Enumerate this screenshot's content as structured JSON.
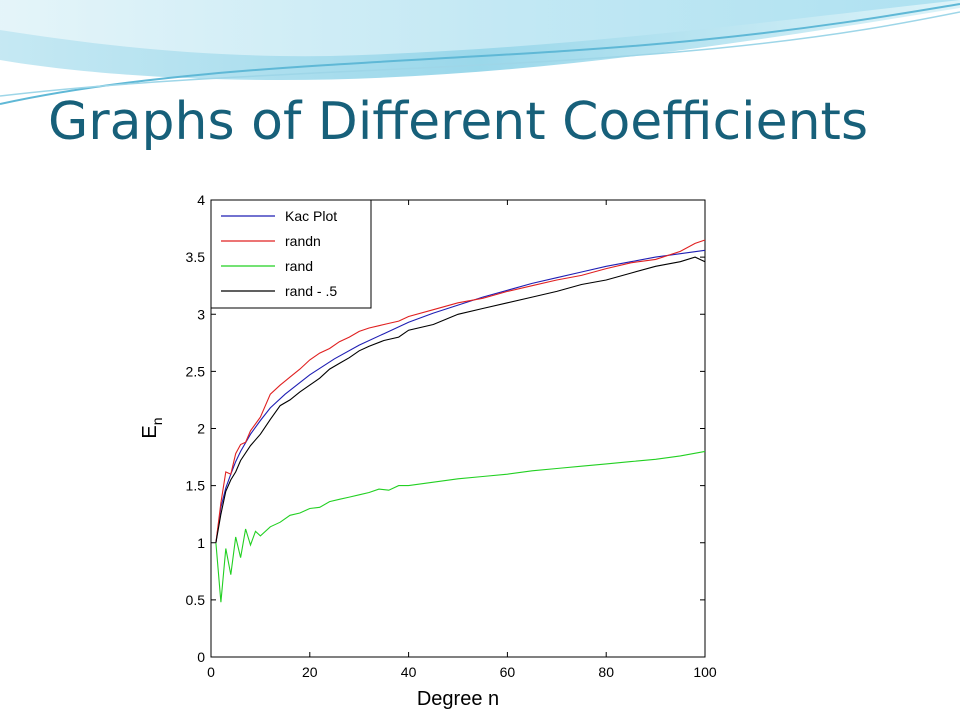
{
  "slide": {
    "title": "Graphs of Different Coefficients",
    "accent_color": "#17607a"
  },
  "chart_data": {
    "type": "line",
    "xlabel": "Degree n",
    "ylabel_main": "E",
    "ylabel_sub": "n",
    "xlim": [
      0,
      100
    ],
    "ylim": [
      0,
      4
    ],
    "xticks": [
      "0",
      "20",
      "40",
      "60",
      "80",
      "100"
    ],
    "yticks": [
      "0",
      "0.5",
      "1",
      "1.5",
      "2",
      "2.5",
      "3",
      "3.5",
      "4"
    ],
    "grid": false,
    "legend_position": "top-left",
    "series": [
      {
        "name": "Kac Plot",
        "color": "#1f1fb4",
        "points": [
          [
            1,
            1.0
          ],
          [
            2,
            1.31
          ],
          [
            3,
            1.48
          ],
          [
            4,
            1.6
          ],
          [
            5,
            1.71
          ],
          [
            6,
            1.8
          ],
          [
            8,
            1.95
          ],
          [
            10,
            2.07
          ],
          [
            12,
            2.18
          ],
          [
            15,
            2.3
          ],
          [
            20,
            2.47
          ],
          [
            25,
            2.61
          ],
          [
            30,
            2.73
          ],
          [
            35,
            2.83
          ],
          [
            40,
            2.93
          ],
          [
            45,
            3.01
          ],
          [
            50,
            3.08
          ],
          [
            55,
            3.15
          ],
          [
            60,
            3.21
          ],
          [
            65,
            3.27
          ],
          [
            70,
            3.32
          ],
          [
            75,
            3.37
          ],
          [
            80,
            3.42
          ],
          [
            85,
            3.46
          ],
          [
            90,
            3.5
          ],
          [
            95,
            3.53
          ],
          [
            100,
            3.56
          ]
        ]
      },
      {
        "name": "randn",
        "color": "#e02020",
        "points": [
          [
            1,
            1.0
          ],
          [
            2,
            1.35
          ],
          [
            3,
            1.62
          ],
          [
            4,
            1.6
          ],
          [
            5,
            1.78
          ],
          [
            6,
            1.86
          ],
          [
            7,
            1.88
          ],
          [
            8,
            1.98
          ],
          [
            10,
            2.1
          ],
          [
            12,
            2.3
          ],
          [
            14,
            2.38
          ],
          [
            16,
            2.45
          ],
          [
            18,
            2.52
          ],
          [
            20,
            2.6
          ],
          [
            22,
            2.66
          ],
          [
            24,
            2.7
          ],
          [
            26,
            2.76
          ],
          [
            28,
            2.8
          ],
          [
            30,
            2.85
          ],
          [
            32,
            2.88
          ],
          [
            34,
            2.9
          ],
          [
            36,
            2.92
          ],
          [
            38,
            2.94
          ],
          [
            40,
            2.98
          ],
          [
            45,
            3.04
          ],
          [
            50,
            3.1
          ],
          [
            55,
            3.14
          ],
          [
            60,
            3.2
          ],
          [
            65,
            3.25
          ],
          [
            70,
            3.3
          ],
          [
            75,
            3.34
          ],
          [
            80,
            3.4
          ],
          [
            85,
            3.45
          ],
          [
            90,
            3.48
          ],
          [
            95,
            3.55
          ],
          [
            98,
            3.62
          ],
          [
            100,
            3.65
          ]
        ]
      },
      {
        "name": "rand",
        "color": "#22d022",
        "points": [
          [
            1,
            1.0
          ],
          [
            2,
            0.48
          ],
          [
            3,
            0.95
          ],
          [
            4,
            0.72
          ],
          [
            5,
            1.05
          ],
          [
            6,
            0.87
          ],
          [
            7,
            1.12
          ],
          [
            8,
            0.98
          ],
          [
            9,
            1.1
          ],
          [
            10,
            1.06
          ],
          [
            12,
            1.14
          ],
          [
            14,
            1.18
          ],
          [
            16,
            1.24
          ],
          [
            18,
            1.26
          ],
          [
            20,
            1.3
          ],
          [
            22,
            1.31
          ],
          [
            24,
            1.36
          ],
          [
            26,
            1.38
          ],
          [
            28,
            1.4
          ],
          [
            30,
            1.42
          ],
          [
            32,
            1.44
          ],
          [
            34,
            1.47
          ],
          [
            36,
            1.46
          ],
          [
            38,
            1.5
          ],
          [
            40,
            1.5
          ],
          [
            45,
            1.53
          ],
          [
            50,
            1.56
          ],
          [
            55,
            1.58
          ],
          [
            60,
            1.6
          ],
          [
            65,
            1.63
          ],
          [
            70,
            1.65
          ],
          [
            75,
            1.67
          ],
          [
            80,
            1.69
          ],
          [
            85,
            1.71
          ],
          [
            90,
            1.73
          ],
          [
            95,
            1.76
          ],
          [
            100,
            1.8
          ]
        ]
      },
      {
        "name": "rand - .5",
        "color": "#000000",
        "points": [
          [
            1,
            1.0
          ],
          [
            2,
            1.25
          ],
          [
            3,
            1.45
          ],
          [
            4,
            1.55
          ],
          [
            5,
            1.62
          ],
          [
            6,
            1.72
          ],
          [
            8,
            1.85
          ],
          [
            10,
            1.95
          ],
          [
            12,
            2.08
          ],
          [
            14,
            2.2
          ],
          [
            16,
            2.25
          ],
          [
            18,
            2.32
          ],
          [
            20,
            2.38
          ],
          [
            22,
            2.44
          ],
          [
            24,
            2.52
          ],
          [
            26,
            2.57
          ],
          [
            28,
            2.62
          ],
          [
            30,
            2.68
          ],
          [
            32,
            2.72
          ],
          [
            35,
            2.77
          ],
          [
            38,
            2.8
          ],
          [
            40,
            2.86
          ],
          [
            45,
            2.91
          ],
          [
            50,
            3.0
          ],
          [
            55,
            3.05
          ],
          [
            60,
            3.1
          ],
          [
            65,
            3.15
          ],
          [
            70,
            3.2
          ],
          [
            75,
            3.26
          ],
          [
            80,
            3.3
          ],
          [
            85,
            3.36
          ],
          [
            90,
            3.42
          ],
          [
            95,
            3.46
          ],
          [
            98,
            3.5
          ],
          [
            100,
            3.46
          ]
        ]
      }
    ]
  }
}
